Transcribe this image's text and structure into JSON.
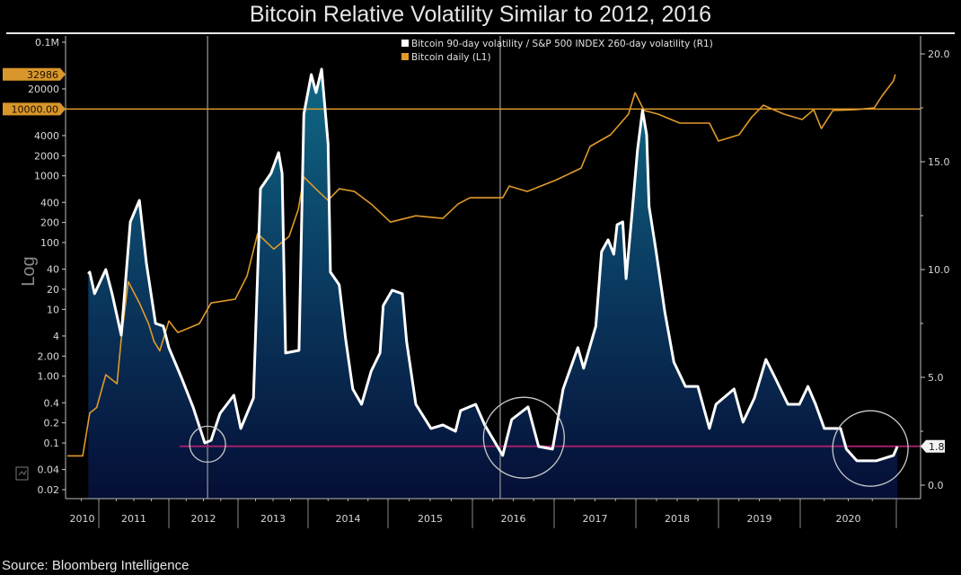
{
  "chart_data": {
    "type": "line",
    "title": "Bitcoin Relative Volatility Similar to 2012, 2016",
    "source": "Source: Bloomberg Intelligence",
    "left_axis": {
      "label": "Log",
      "scale": "log",
      "range": [
        0.02,
        100000
      ],
      "ticks": [
        {
          "v": 100000,
          "label": "0.1M"
        },
        {
          "v": 20000,
          "label": "20000"
        },
        {
          "v": 4000,
          "label": "4000"
        },
        {
          "v": 2000,
          "label": "2000"
        },
        {
          "v": 1000,
          "label": "1000"
        },
        {
          "v": 400,
          "label": "400"
        },
        {
          "v": 200,
          "label": "200"
        },
        {
          "v": 100,
          "label": "100"
        },
        {
          "v": 40,
          "label": "40"
        },
        {
          "v": 20,
          "label": "20"
        },
        {
          "v": 10,
          "label": "10"
        },
        {
          "v": 4,
          "label": "4"
        },
        {
          "v": 2,
          "label": "2.00"
        },
        {
          "v": 1,
          "label": "1.00"
        },
        {
          "v": 0.4,
          "label": "0.4"
        },
        {
          "v": 0.2,
          "label": "0.2"
        },
        {
          "v": 0.1,
          "label": "0.1"
        },
        {
          "v": 0.04,
          "label": "0.04"
        },
        {
          "v": 0.02,
          "label": "0.02"
        }
      ],
      "tags": [
        {
          "v": 32986,
          "label": "32986"
        },
        {
          "v": 10000,
          "label": "10000.00"
        }
      ]
    },
    "right_axis": {
      "scale": "linear",
      "range": [
        0,
        20
      ],
      "ticks": [
        {
          "v": 20,
          "label": "20.0"
        },
        {
          "v": 15,
          "label": "15.0"
        },
        {
          "v": 10,
          "label": "10.0"
        },
        {
          "v": 5,
          "label": "5.0"
        },
        {
          "v": 0,
          "label": "0.0"
        }
      ],
      "tag": {
        "v": 1.8,
        "label": "1.8"
      }
    },
    "x_axis": {
      "range": [
        2010.55,
        2021.03
      ],
      "years": [
        "2010",
        "2011",
        "2012",
        "2013",
        "2014",
        "2015",
        "2016",
        "2017",
        "2018",
        "2019",
        "2020"
      ]
    },
    "reference_lines": {
      "horizontal_btc": 10000,
      "horizontal_ratio": 1.8,
      "vertical_years": [
        2012.56,
        2016.34
      ]
    },
    "highlight_circles": [
      {
        "x": 2012.56,
        "y": 1.9
      },
      {
        "x": 2016.63,
        "y": 2.2
      },
      {
        "x": 2020.73,
        "y": 1.7
      }
    ],
    "series": [
      {
        "name": "Bitcoin 90-day volatility / S&P 500 INDEX 260-day volatility (R1)",
        "axis": "right",
        "color": "#ffffff",
        "x": [
          2010.85,
          2010.87,
          2010.94,
          2011.1,
          2011.19,
          2011.32,
          2011.45,
          2011.58,
          2011.68,
          2011.81,
          2011.92,
          2012.0,
          2012.18,
          2012.35,
          2012.52,
          2012.61,
          2012.74,
          2012.94,
          2013.04,
          2013.22,
          2013.32,
          2013.47,
          2013.58,
          2013.63,
          2013.68,
          2013.87,
          2013.94,
          2014.04,
          2014.1,
          2014.17,
          2014.25,
          2014.28,
          2014.39,
          2014.47,
          2014.56,
          2014.67,
          2014.79,
          2014.9,
          2014.94,
          2015.05,
          2015.17,
          2015.22,
          2015.33,
          2015.51,
          2015.65,
          2015.8,
          2015.86,
          2016.04,
          2016.15,
          2016.37,
          2016.48,
          2016.68,
          2016.81,
          2016.98,
          2017.11,
          2017.29,
          2017.36,
          2017.51,
          2017.58,
          2017.66,
          2017.73,
          2017.77,
          2017.84,
          2017.88,
          2017.95,
          2018.02,
          2018.08,
          2018.13,
          2018.16,
          2018.24,
          2018.35,
          2018.46,
          2018.6,
          2018.75,
          2018.89,
          2018.97,
          2019.19,
          2019.3,
          2019.44,
          2019.58,
          2019.69,
          2019.85,
          2019.99,
          2020.08,
          2020.16,
          2020.25,
          2020.42,
          2020.48,
          2020.59,
          2020.79,
          2020.97,
          2021.01
        ],
        "y": [
          9.79,
          9.88,
          8.88,
          10.0,
          8.88,
          6.96,
          12.21,
          13.21,
          10.29,
          7.5,
          7.38,
          6.38,
          5.0,
          3.63,
          1.96,
          2.08,
          3.33,
          4.17,
          2.63,
          4.04,
          13.75,
          14.46,
          15.42,
          14.46,
          6.13,
          6.25,
          17.21,
          19.04,
          18.21,
          19.29,
          15.83,
          9.88,
          9.29,
          6.79,
          4.46,
          3.75,
          5.29,
          6.13,
          8.33,
          9.04,
          8.88,
          6.67,
          3.75,
          2.63,
          2.79,
          2.5,
          3.46,
          3.75,
          2.79,
          1.38,
          3.04,
          3.63,
          1.79,
          1.67,
          4.46,
          6.38,
          5.42,
          7.38,
          10.83,
          11.38,
          10.71,
          12.08,
          12.21,
          9.58,
          12.5,
          15.54,
          17.38,
          16.25,
          12.92,
          10.96,
          8.04,
          5.71,
          4.58,
          4.58,
          2.63,
          3.75,
          4.46,
          2.92,
          4.04,
          5.83,
          5.0,
          3.75,
          3.75,
          4.58,
          3.75,
          2.63,
          2.63,
          1.67,
          1.13,
          1.13,
          1.38,
          1.79
        ]
      },
      {
        "name": "Bitcoin daily (L1)",
        "axis": "left",
        "color": "#e09a2a",
        "x": [
          2010.55,
          2010.77,
          2010.87,
          2010.97,
          2011.1,
          2011.26,
          2011.32,
          2011.42,
          2011.58,
          2011.71,
          2011.79,
          2011.87,
          2012.0,
          2012.13,
          2012.44,
          2012.61,
          2012.96,
          2013.13,
          2013.28,
          2013.51,
          2013.73,
          2013.86,
          2013.94,
          2014.13,
          2014.25,
          2014.39,
          2014.58,
          2014.79,
          2015.03,
          2015.33,
          2015.65,
          2015.83,
          2015.97,
          2016.37,
          2016.45,
          2016.67,
          2017.03,
          2017.33,
          2017.44,
          2017.69,
          2017.91,
          2017.99,
          2018.1,
          2018.27,
          2018.53,
          2018.89,
          2019.0,
          2019.25,
          2019.41,
          2019.55,
          2019.8,
          2020.02,
          2020.14,
          2020.22,
          2020.34,
          2020.57,
          2020.77,
          2020.85,
          2020.97,
          2020.99
        ],
        "y": [
          0.064,
          0.064,
          0.28,
          0.34,
          1.05,
          0.77,
          3.6,
          26,
          12.5,
          6.1,
          3.3,
          2.4,
          6.7,
          4.5,
          6.1,
          12.5,
          14.2,
          31.7,
          136,
          80,
          124,
          314,
          957,
          583,
          428,
          640,
          583,
          378,
          203,
          252,
          230,
          378,
          470,
          470,
          703,
          583,
          873,
          1306,
          2748,
          4110,
          8380,
          17600,
          9490,
          8380,
          6150,
          6150,
          3310,
          4110,
          7640,
          11400,
          8380,
          6960,
          9770,
          5100,
          9490,
          9770,
          10400,
          15600,
          26400,
          32986
        ]
      }
    ]
  }
}
